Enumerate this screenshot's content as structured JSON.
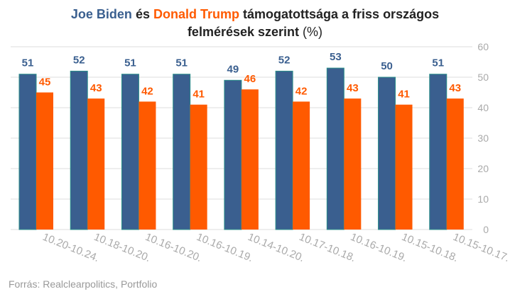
{
  "title": {
    "name1": "Joe Biden",
    "connector": "és",
    "name2": "Donald Trump",
    "rest": "támogatottsága a friss országos",
    "line2": "felmérések szerint",
    "unit": "(%)"
  },
  "source": "Forrás: Realclearpolitics, Portfolio",
  "colors": {
    "biden": "#3a5f8f",
    "trump": "#ff5a00",
    "grid": "#dddddd",
    "axis_text": "#aaaaaa"
  },
  "chart_data": {
    "type": "bar",
    "title": "Joe Biden és Donald Trump támogatottsága a friss országos felmérések szerint (%)",
    "categories": [
      "10.20-10.24.",
      "10.18-10.20.",
      "10.16-10.20.",
      "10.16-10.19.",
      "10.14-10.20.",
      "10.17-10.18.",
      "10.16-10.19.",
      "10.15-10.18.",
      "10.15-10.17."
    ],
    "series": [
      {
        "name": "Joe Biden",
        "values": [
          51,
          52,
          51,
          51,
          49,
          52,
          53,
          50,
          51
        ]
      },
      {
        "name": "Donald Trump",
        "values": [
          45,
          43,
          42,
          41,
          46,
          42,
          43,
          41,
          43
        ]
      }
    ],
    "ylim": [
      0,
      60
    ],
    "yticks": [
      0,
      10,
      20,
      30,
      40,
      50,
      60
    ],
    "y_axis_position": "right",
    "grid": true,
    "data_labels": true
  }
}
